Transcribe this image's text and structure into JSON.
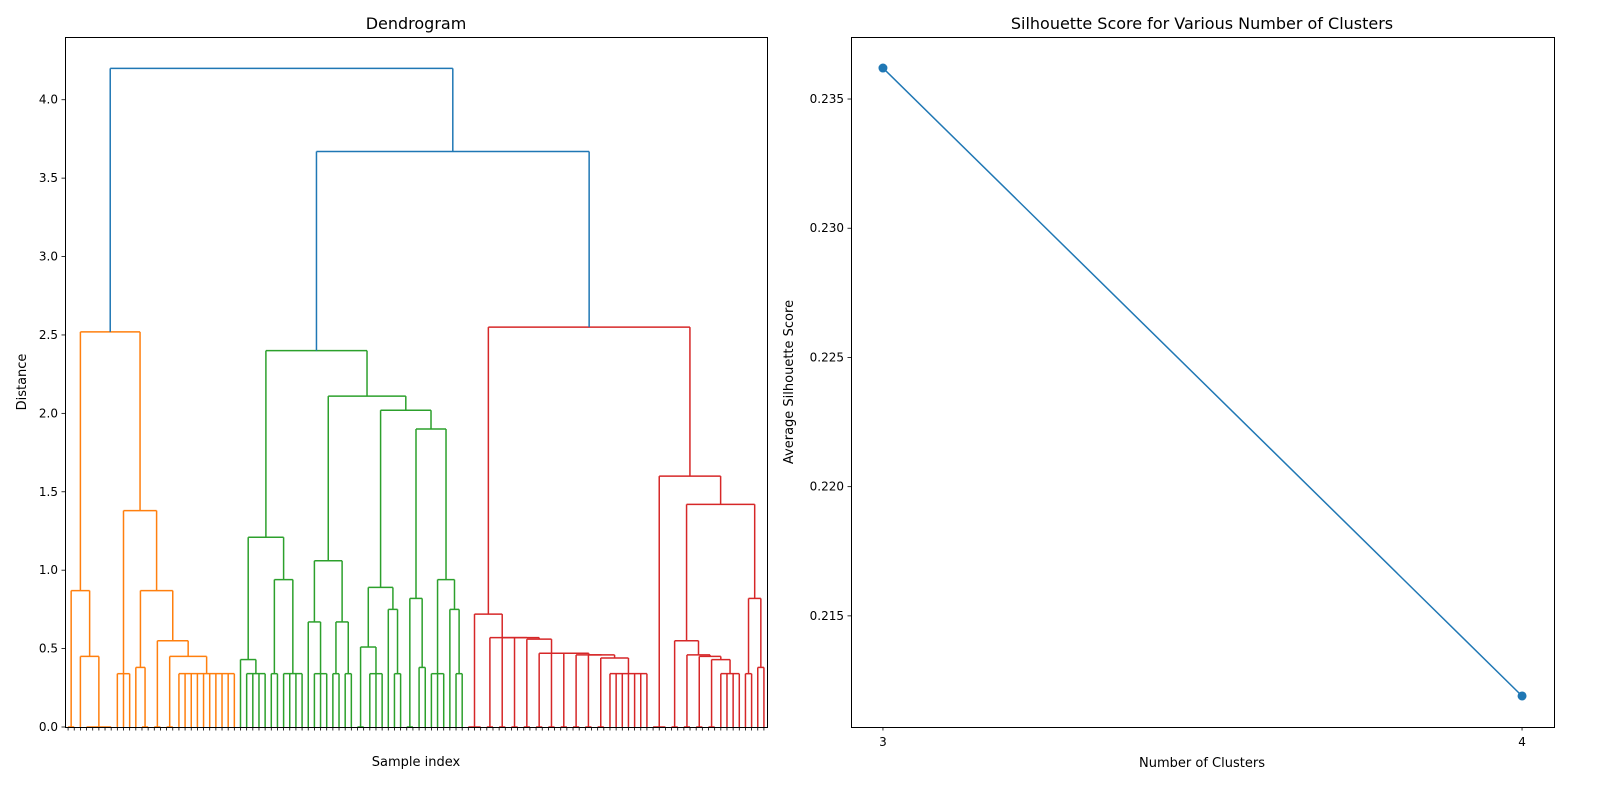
{
  "chart_data": [
    {
      "type": "dendrogram",
      "title": "Dendrogram",
      "xlabel": "Sample index",
      "ylabel": "Distance",
      "ylim": [
        0,
        4.4
      ],
      "yticks": [
        "0.0",
        "0.5",
        "1.0",
        "1.5",
        "2.0",
        "2.5",
        "3.0",
        "3.5",
        "4.0"
      ],
      "link_color_above_threshold": "#1f77b4",
      "tree": {
        "h": 4.2,
        "c": [
          {
            "color": "#ff7f0e",
            "tree": [
              2.52,
              [
                0.87,
                [
                  0,
                  0,
                  0
                ],
                [
                  0.45,
                  0,
                  [
                    0,
                    0,
                    0,
                    0,
                    0,
                    0
                  ]
                ]
              ],
              [
                1.38,
                [
                  0.34,
                  0,
                  0,
                  0
                ],
                [
                  0.87,
                  [
                    0.38,
                    0,
                    [
                      0,
                      0,
                      0
                    ]
                  ],
                  [
                    0.55,
                    [
                      0,
                      0,
                      0
                    ],
                    [
                      0.45,
                      [
                        0,
                        0,
                        0
                      ],
                      [
                        0.34,
                        0,
                        0,
                        0,
                        0,
                        0,
                        0,
                        0,
                        0,
                        0,
                        0
                      ]
                    ]
                  ]
                ]
              ]
            ]
          },
          {
            "h": 3.67,
            "c": [
              {
                "color": "#2ca02c",
                "tree": [
                  2.4,
                  [
                    1.21,
                    [
                      0.43,
                      0,
                      [
                        0.34,
                        0,
                        0,
                        0,
                        0
                      ]
                    ],
                    [
                      0.94,
                      [
                        0.34,
                        0,
                        0
                      ],
                      [
                        0.34,
                        0,
                        0,
                        0,
                        0
                      ]
                    ]
                  ],
                  [
                    2.11,
                    [
                      1.06,
                      [
                        0.67,
                        0,
                        [
                          0.34,
                          0,
                          0,
                          0
                        ]
                      ],
                      [
                        0.67,
                        [
                          0.34,
                          0,
                          0
                        ],
                        [
                          0.34,
                          0,
                          0
                        ]
                      ]
                    ],
                    [
                      2.02,
                      [
                        0.89,
                        [
                          0.51,
                          [
                            0,
                            0,
                            0
                          ],
                          [
                            0.34,
                            0,
                            0,
                            0
                          ]
                        ],
                        [
                          0.75,
                          0,
                          [
                            0.34,
                            0,
                            0
                          ]
                        ]
                      ],
                      [
                        1.9,
                        [
                          0.82,
                          [
                            0,
                            0,
                            0
                          ],
                          [
                            0.38,
                            0,
                            0
                          ]
                        ],
                        [
                          0.94,
                          [
                            0.34,
                            0,
                            0,
                            0
                          ],
                          [
                            0.75,
                            0,
                            [
                              0.34,
                              0,
                              0
                            ]
                          ]
                        ]
                      ]
                    ]
                  ]
                ]
              },
              {
                "color": "#d62728",
                "tree": [
                  2.55,
                  [
                    0.72,
                    [
                      0,
                      0,
                      0,
                      0
                    ],
                    [
                      0.57,
                      [
                        0,
                        0,
                        0
                      ],
                      [
                        0.57,
                        [
                          0,
                          0,
                          0
                        ],
                        [
                          0.57,
                          [
                            0,
                            0,
                            0
                          ],
                          [
                            0.56,
                            [
                              0,
                              0,
                              0
                            ],
                            [
                              0.47,
                              [
                                0,
                                0,
                                0
                              ],
                              [
                                0.47,
                                [
                                  0,
                                  0,
                                  0
                                ],
                                [
                                  0.47,
                                  [
                                    0,
                                    0,
                                    0
                                  ],
                                  [
                                    0.46,
                                    [
                                      0,
                                      0,
                                      0
                                    ],
                                    [
                                      0.46,
                                      [
                                        0,
                                        0,
                                        0
                                      ],
                                      [
                                        0.44,
                                        [
                                          0,
                                          0,
                                          0
                                        ],
                                        [
                                          0.34,
                                          0,
                                          0,
                                          0,
                                          0,
                                          0,
                                          0,
                                          0
                                        ]
                                      ]
                                    ]
                                  ]
                                ]
                              ]
                            ]
                          ]
                        ]
                      ]
                    ]
                  ],
                  [
                    1.6,
                    [
                      0,
                      0,
                      0,
                      0
                    ],
                    [
                      1.42,
                      [
                        0.55,
                        [
                          0,
                          0,
                          0
                        ],
                        [
                          0.46,
                          [
                            0,
                            0,
                            0
                          ],
                          [
                            0.45,
                            [
                              0,
                              0,
                              0
                            ],
                            [
                              0.43,
                              [
                                0,
                                0,
                                0
                              ],
                              [
                                0.34,
                                0,
                                0,
                                0,
                                0
                              ]
                            ]
                          ]
                        ]
                      ],
                      [
                        0.82,
                        [
                          0.34,
                          0,
                          0
                        ],
                        [
                          0.38,
                          0,
                          0
                        ]
                      ]
                    ]
                  ]
                ]
              }
            ]
          }
        ]
      }
    },
    {
      "type": "line",
      "title": "Silhouette Score for Various Number of Clusters",
      "xlabel": "Number of Clusters",
      "ylabel": "Average Silhouette Score",
      "x": [
        3,
        4
      ],
      "y": [
        0.2362,
        0.2119
      ],
      "xlim": [
        2.95,
        4.05
      ],
      "ylim": [
        0.2107,
        0.2374
      ],
      "xticks": [
        "3",
        "4"
      ],
      "yticks": [
        "0.215",
        "0.220",
        "0.225",
        "0.230",
        "0.235"
      ],
      "color": "#1f77b4",
      "marker": "circle",
      "grid": false
    }
  ]
}
